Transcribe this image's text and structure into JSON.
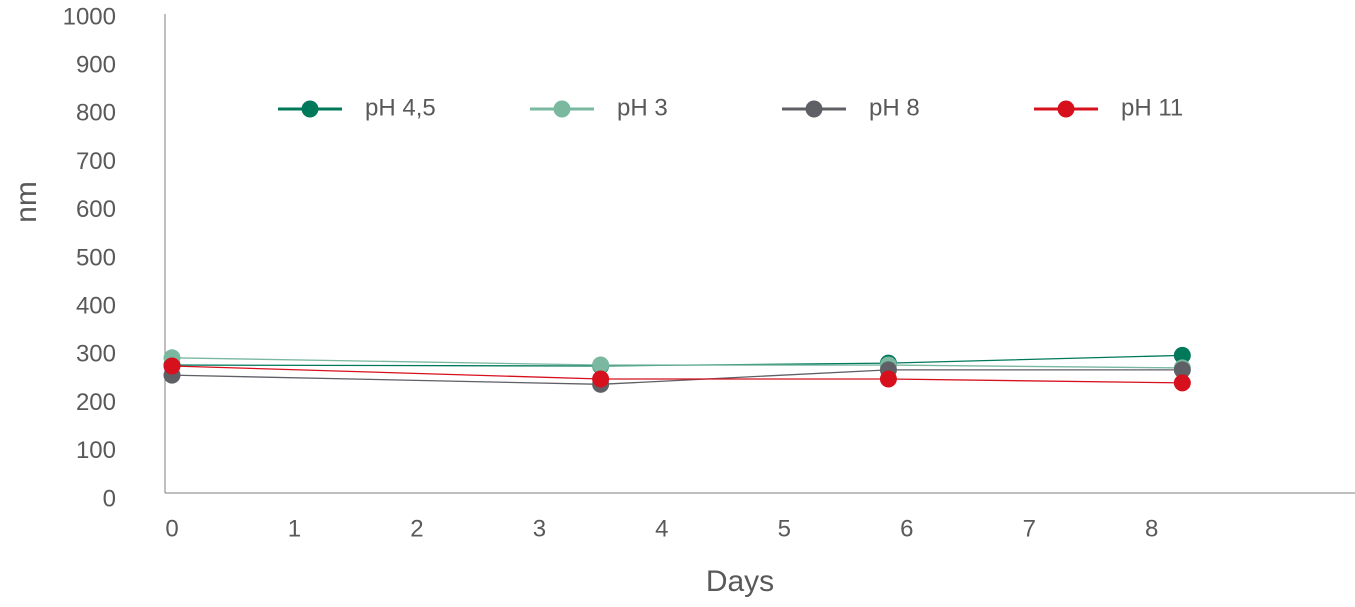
{
  "chart_data": {
    "type": "line",
    "x_label": "Days",
    "y_label": "nm",
    "x": [
      0,
      3.5,
      5.85,
      8.25
    ],
    "series": [
      {
        "name": "pH 4,5",
        "color": "#00795a",
        "values": [
          280,
          278,
          284,
          300
        ]
      },
      {
        "name": "pH 3",
        "color": "#7ab8a0",
        "values": [
          295,
          280,
          280,
          274
        ]
      },
      {
        "name": "pH 8",
        "color": "#5f5f66",
        "values": [
          259,
          240,
          270,
          270
        ]
      },
      {
        "name": "pH 11",
        "color": "#d7101e",
        "values": [
          278,
          251,
          251,
          243
        ]
      }
    ],
    "xlim": [
      0,
      9.66
    ],
    "xticks": [
      0,
      1,
      2,
      3,
      4,
      5,
      6,
      7,
      8
    ],
    "ylim": [
      0,
      1000
    ],
    "yticks": [
      0,
      100,
      200,
      300,
      400,
      500,
      600,
      700,
      800,
      900,
      1000
    ],
    "legend": "top",
    "grid": false
  }
}
